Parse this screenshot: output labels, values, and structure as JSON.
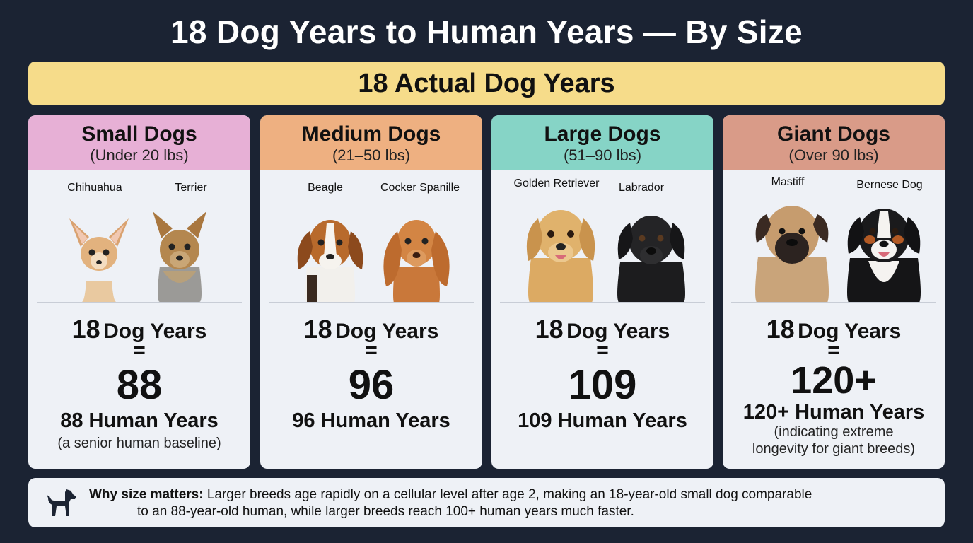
{
  "title": "18 Dog Years to Human Years — By Size",
  "banner": "18 Actual Dog Years",
  "cards": [
    {
      "name": "Small Dogs",
      "range": "(Under 20 lbs)",
      "color": "#e7b0d6",
      "breeds": [
        "Chihuahua",
        "Terrier"
      ],
      "dog_years_num": "18",
      "dog_years_text": "Dog Years",
      "equals": "=",
      "big": "88",
      "human": "88 Human Years",
      "note": "(a senior human baseline)"
    },
    {
      "name": "Medium Dogs",
      "range": "(21–50 lbs)",
      "color": "#eeb081",
      "breeds": [
        "Beagle",
        "Cocker Spanille"
      ],
      "dog_years_num": "18",
      "dog_years_text": "Dog Years",
      "equals": "=",
      "big": "96",
      "human": "96 Human Years",
      "note": ""
    },
    {
      "name": "Large Dogs",
      "range": "(51–90 lbs)",
      "color": "#86d4c6",
      "breeds": [
        "Golden Retriever",
        "Labrador"
      ],
      "dog_years_num": "18",
      "dog_years_text": "Dog Years",
      "equals": "=",
      "big": "109",
      "human": "109 Human Years",
      "note": ""
    },
    {
      "name": "Giant Dogs",
      "range": "(Over 90 lbs)",
      "color": "#d99b88",
      "breeds": [
        "Mastiff",
        "Bernese Dog"
      ],
      "dog_years_num": "18",
      "dog_years_text": "Dog Years",
      "equals": "=",
      "big": "120+",
      "human": "120+ Human Years",
      "note_line1": "(indicating extreme",
      "note_line2": "longevity for giant breeds)"
    }
  ],
  "footer": {
    "bold": "Why size matters:",
    "line1": "Larger breeds age rapidly on a cellular level after age 2, making an 18-year-old small dog comparable",
    "line2": "to an 88-year-old human, while larger breeds reach 100+ human years much faster.",
    "icon": "dog-silhouette-icon"
  }
}
